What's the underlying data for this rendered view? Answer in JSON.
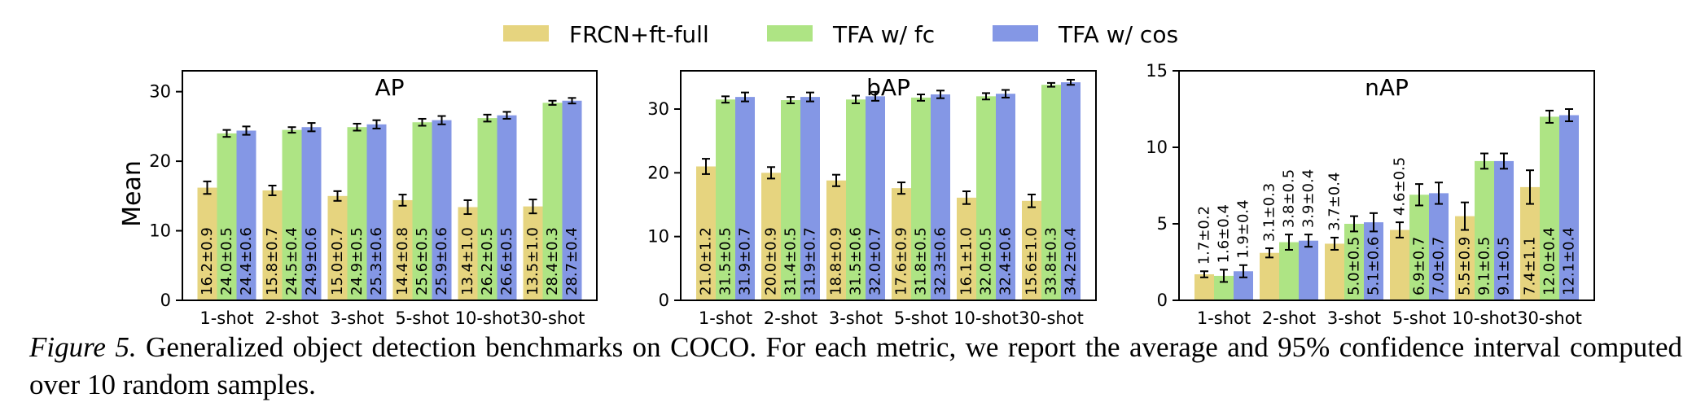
{
  "legend": [
    {
      "label": "FRCN+ft-full",
      "color": "#e6d47f"
    },
    {
      "label": "TFA w/ fc",
      "color": "#aee484"
    },
    {
      "label": "TFA w/ cos",
      "color": "#8497e5"
    }
  ],
  "ylabel": "Mean",
  "chart_data": [
    {
      "type": "bar",
      "title": "AP",
      "ylabel": "Mean",
      "ylim": [
        0,
        33
      ],
      "yticks": [
        0,
        10,
        20,
        30
      ],
      "categories": [
        "1-shot",
        "2-shot",
        "3-shot",
        "5-shot",
        "10-shot",
        "30-shot"
      ],
      "series": [
        {
          "name": "FRCN+ft-full",
          "values": [
            16.2,
            15.8,
            15.0,
            14.4,
            13.4,
            13.5
          ],
          "errors": [
            0.9,
            0.7,
            0.7,
            0.8,
            1.0,
            1.0
          ],
          "labels": [
            "16.2±0.9",
            "15.8±0.7",
            "15.0±0.7",
            "14.4±0.8",
            "13.4±1.0",
            "13.5±1.0"
          ]
        },
        {
          "name": "TFA w/ fc",
          "values": [
            24.0,
            24.5,
            24.9,
            25.6,
            26.2,
            28.4
          ],
          "errors": [
            0.5,
            0.4,
            0.5,
            0.5,
            0.5,
            0.3
          ],
          "labels": [
            "24.0±0.5",
            "24.5±0.4",
            "24.9±0.5",
            "25.6±0.5",
            "26.2±0.5",
            "28.4±0.3"
          ]
        },
        {
          "name": "TFA w/ cos",
          "values": [
            24.4,
            24.9,
            25.3,
            25.9,
            26.6,
            28.7
          ],
          "errors": [
            0.6,
            0.6,
            0.6,
            0.6,
            0.5,
            0.4
          ],
          "labels": [
            "24.4±0.6",
            "24.9±0.6",
            "25.3±0.6",
            "25.9±0.6",
            "26.6±0.5",
            "28.7±0.4"
          ]
        }
      ]
    },
    {
      "type": "bar",
      "title": "bAP",
      "ylabel": "",
      "ylim": [
        0,
        36
      ],
      "yticks": [
        0,
        10,
        20,
        30
      ],
      "categories": [
        "1-shot",
        "2-shot",
        "3-shot",
        "5-shot",
        "10-shot",
        "30-shot"
      ],
      "series": [
        {
          "name": "FRCN+ft-full",
          "values": [
            21.0,
            20.0,
            18.8,
            17.6,
            16.1,
            15.6
          ],
          "errors": [
            1.2,
            0.9,
            0.9,
            0.9,
            1.0,
            1.0
          ],
          "labels": [
            "21.0±1.2",
            "20.0±0.9",
            "18.8±0.9",
            "17.6±0.9",
            "16.1±1.0",
            "15.6±1.0"
          ]
        },
        {
          "name": "TFA w/ fc",
          "values": [
            31.5,
            31.4,
            31.5,
            31.8,
            32.0,
            33.8
          ],
          "errors": [
            0.5,
            0.5,
            0.6,
            0.5,
            0.5,
            0.3
          ],
          "labels": [
            "31.5±0.5",
            "31.4±0.5",
            "31.5±0.6",
            "31.8±0.5",
            "32.0±0.5",
            "33.8±0.3"
          ]
        },
        {
          "name": "TFA w/ cos",
          "values": [
            31.9,
            31.9,
            32.0,
            32.3,
            32.4,
            34.2
          ],
          "errors": [
            0.7,
            0.7,
            0.7,
            0.6,
            0.6,
            0.4
          ],
          "labels": [
            "31.9±0.7",
            "31.9±0.7",
            "32.0±0.7",
            "32.3±0.6",
            "32.4±0.6",
            "34.2±0.4"
          ]
        }
      ]
    },
    {
      "type": "bar",
      "title": "nAP",
      "ylabel": "",
      "ylim": [
        0,
        15
      ],
      "yticks": [
        0,
        5,
        10,
        15
      ],
      "categories": [
        "1-shot",
        "2-shot",
        "3-shot",
        "5-shot",
        "10-shot",
        "30-shot"
      ],
      "series": [
        {
          "name": "FRCN+ft-full",
          "values": [
            1.7,
            3.1,
            3.7,
            4.6,
            5.5,
            7.4
          ],
          "errors": [
            0.2,
            0.3,
            0.4,
            0.5,
            0.9,
            1.1
          ],
          "labels": [
            "1.7±0.2",
            "3.1±0.3",
            "3.7±0.4",
            "4.6±0.5",
            "5.5±0.9",
            "7.4±1.1"
          ]
        },
        {
          "name": "TFA w/ fc",
          "values": [
            1.6,
            3.8,
            5.0,
            6.9,
            9.1,
            12.0
          ],
          "errors": [
            0.4,
            0.5,
            0.5,
            0.7,
            0.5,
            0.4
          ],
          "labels": [
            "1.6±0.4",
            "3.8±0.5",
            "5.0±0.5",
            "6.9±0.7",
            "9.1±0.5",
            "12.0±0.4"
          ]
        },
        {
          "name": "TFA w/ cos",
          "values": [
            1.9,
            3.9,
            5.1,
            7.0,
            9.1,
            12.1
          ],
          "errors": [
            0.4,
            0.4,
            0.6,
            0.7,
            0.5,
            0.4
          ],
          "labels": [
            "1.9±0.4",
            "3.9±0.4",
            "5.1±0.6",
            "7.0±0.7",
            "9.1±0.5",
            "12.1±0.4"
          ]
        }
      ]
    }
  ],
  "caption": {
    "label": "Figure 5.",
    "text": " Generalized object detection benchmarks on COCO. For each metric, we report the average and 95% confidence interval computed over 10 random samples."
  }
}
